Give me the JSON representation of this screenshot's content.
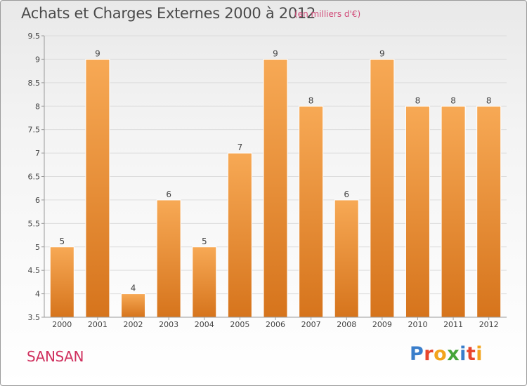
{
  "header": {
    "title": "Achats et Charges Externes 2000 à 2012",
    "unit_note": "(en milliers d'€)"
  },
  "footer": {
    "commune": "SANSAN",
    "brand": "Proxiti",
    "brand_letters": [
      {
        "ch": "P",
        "color": "#3a7ecb"
      },
      {
        "ch": "r",
        "color": "#e8452c"
      },
      {
        "ch": "o",
        "color": "#f2a41c"
      },
      {
        "ch": "x",
        "color": "#46a53a"
      },
      {
        "ch": "i",
        "color": "#3a7ecb"
      },
      {
        "ch": "t",
        "color": "#e8452c"
      },
      {
        "ch": "i",
        "color": "#f2a41c"
      }
    ]
  },
  "colors": {
    "bar_light": "#f7a955",
    "bar_dark": "#d6741c",
    "axis": "#9a9a9a",
    "grid": "#dddddd",
    "label_text": "#444444"
  },
  "chart_data": {
    "type": "bar",
    "title": "Achats et Charges Externes 2000 à 2012",
    "categories": [
      "2000",
      "2001",
      "2002",
      "2003",
      "2004",
      "2005",
      "2006",
      "2007",
      "2008",
      "2009",
      "2010",
      "2011",
      "2012"
    ],
    "values": [
      5,
      9,
      4,
      6,
      5,
      7,
      9,
      8,
      6,
      9,
      8,
      8,
      8
    ],
    "data_labels": [
      "5",
      "9",
      "4",
      "6",
      "5",
      "7",
      "9",
      "8",
      "6",
      "9",
      "8",
      "8",
      "8"
    ],
    "ylim": [
      3.5,
      9.5
    ],
    "yticks": [
      3.5,
      4,
      4.5,
      5,
      5.5,
      6,
      6.5,
      7,
      7.5,
      8,
      8.5,
      9,
      9.5
    ],
    "ytick_labels": [
      "3.5",
      "4",
      "4.5",
      "5",
      "5.5",
      "6",
      "6.5",
      "7",
      "7.5",
      "8",
      "8.5",
      "9",
      "9.5"
    ],
    "grid": true,
    "legend": "none"
  }
}
